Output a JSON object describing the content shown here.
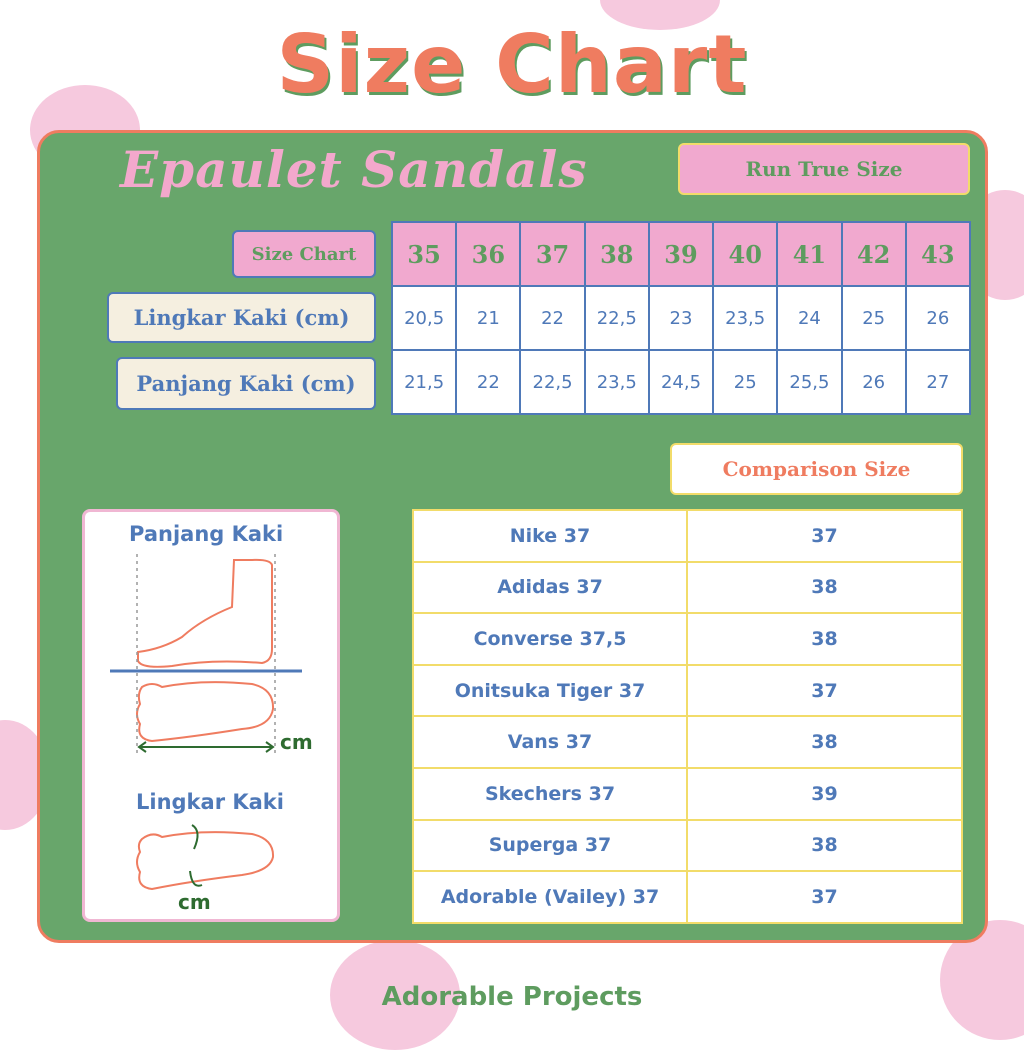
{
  "title": "Size Chart",
  "product": "Epaulet Sandals",
  "fit_badge": "Run True Size",
  "size_table": {
    "header_label": "Size Chart",
    "sizes": [
      "35",
      "36",
      "37",
      "38",
      "39",
      "40",
      "41",
      "42",
      "43"
    ],
    "rows": [
      {
        "label": "Lingkar Kaki (cm)",
        "values": [
          "20,5",
          "21",
          "22",
          "22,5",
          "23",
          "23,5",
          "24",
          "25",
          "26"
        ]
      },
      {
        "label": "Panjang Kaki (cm)",
        "values": [
          "21,5",
          "22",
          "22,5",
          "23,5",
          "24,5",
          "25",
          "25,5",
          "26",
          "27"
        ]
      }
    ]
  },
  "comparison": {
    "title": "Comparison Size",
    "rows": [
      {
        "brand": "Nike 37",
        "size": "37"
      },
      {
        "brand": "Adidas 37",
        "size": "38"
      },
      {
        "brand": "Converse 37,5",
        "size": "38"
      },
      {
        "brand": "Onitsuka Tiger 37",
        "size": "37"
      },
      {
        "brand": "Vans 37",
        "size": "38"
      },
      {
        "brand": "Skechers 37",
        "size": "39"
      },
      {
        "brand": "Superga 37",
        "size": "38"
      },
      {
        "brand": "Adorable (Vailey) 37",
        "size": "37"
      }
    ]
  },
  "guide": {
    "length_title": "Panjang Kaki",
    "girth_title": "Lingkar Kaki",
    "unit": "cm"
  },
  "footer": "Adorable Projects",
  "colors": {
    "green": "#68a66b",
    "pink": "#f1a9cf",
    "salmon": "#ef7c60",
    "blue": "#4f79b8",
    "yellow": "#f2dc6a"
  }
}
